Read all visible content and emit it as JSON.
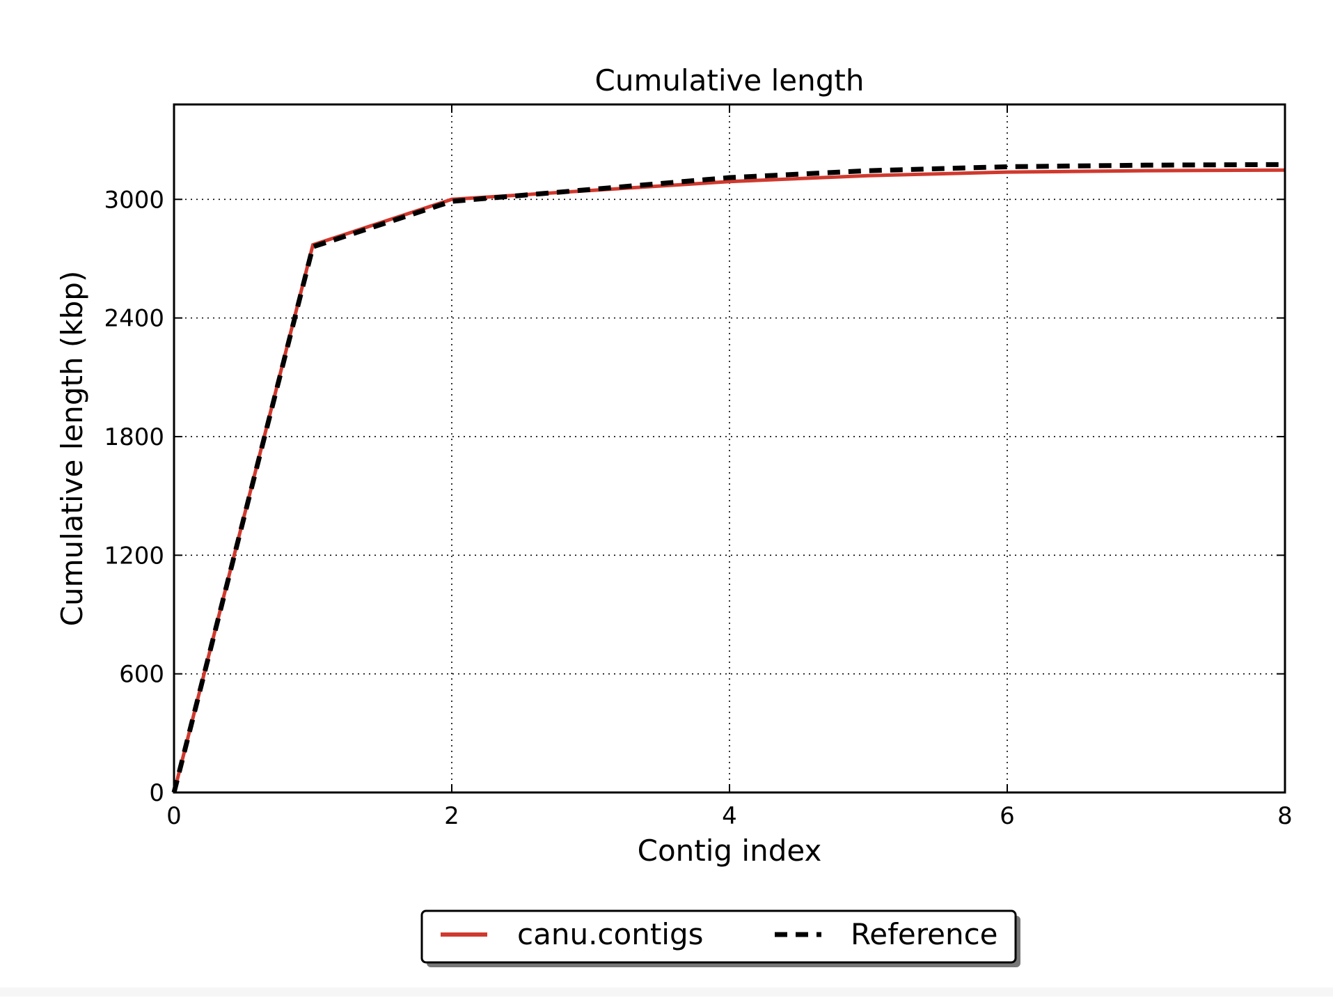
{
  "chart_data": {
    "type": "line",
    "title": "Cumulative length",
    "xlabel": "Contig index",
    "ylabel": "Cumulative length (kbp)",
    "xlim": [
      0,
      8
    ],
    "ylim": [
      0,
      3480
    ],
    "x_ticks": [
      0,
      2,
      4,
      6,
      8
    ],
    "x_tick_labels": [
      "0",
      "2",
      "4",
      "6",
      "8"
    ],
    "y_ticks": [
      0,
      600,
      1200,
      1800,
      2400,
      3000
    ],
    "y_tick_labels": [
      "0",
      "600",
      "1200",
      "1800",
      "2400",
      "3000"
    ],
    "grid": true,
    "legend_position": "bottom-center",
    "series": [
      {
        "name": "canu.contigs",
        "color": "#d0392e",
        "style": "solid",
        "x": [
          0,
          1,
          2,
          3,
          4,
          5,
          6,
          7,
          8
        ],
        "y": [
          0,
          2770,
          3000,
          3045,
          3090,
          3120,
          3138,
          3145,
          3148
        ]
      },
      {
        "name": "Reference",
        "color": "#000000",
        "style": "dashed",
        "x": [
          0,
          1,
          2,
          3,
          4,
          5,
          6,
          7,
          8
        ],
        "y": [
          0,
          2760,
          2990,
          3050,
          3110,
          3145,
          3165,
          3173,
          3176
        ]
      }
    ]
  }
}
